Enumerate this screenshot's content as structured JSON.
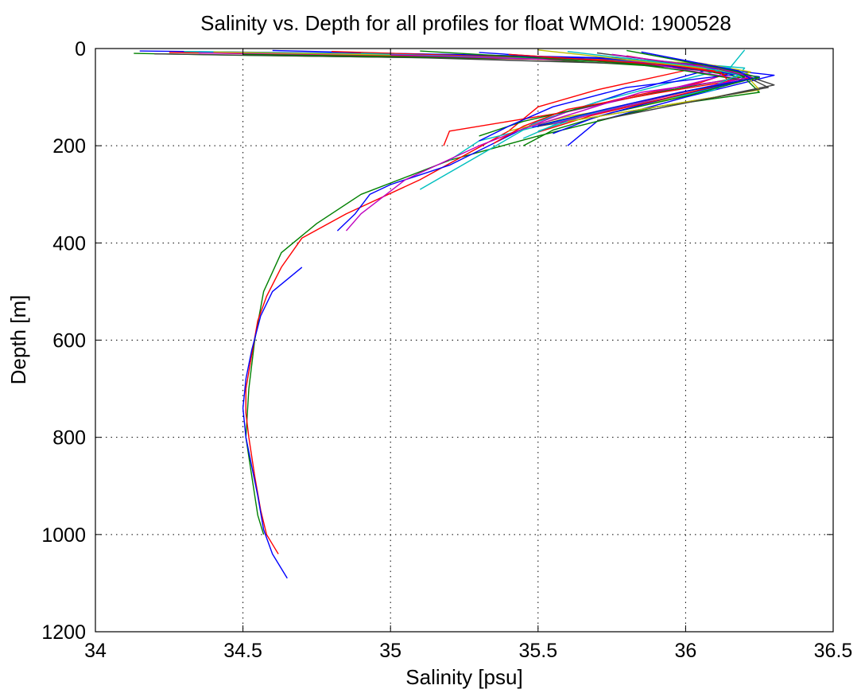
{
  "chart_data": {
    "type": "line",
    "title": "Salinity vs. Depth for all profiles for float WMOId: 1900528",
    "xlabel": "Salinity [psu]",
    "ylabel": "Depth [m]",
    "xlim": [
      34,
      36.5
    ],
    "ylim": [
      0,
      1200
    ],
    "y_reversed": true,
    "grid": true,
    "legend": "none",
    "x_ticks": [
      "34",
      "34.5",
      "35",
      "35.5",
      "36",
      "36.5"
    ],
    "y_ticks": [
      "0",
      "200",
      "400",
      "600",
      "800",
      "1000",
      "1200"
    ],
    "colors": [
      "#0000ff",
      "#008000",
      "#ff0000",
      "#00bfbf",
      "#bf00bf",
      "#bfbf00",
      "#404040"
    ],
    "series": [
      {
        "color": "#0000ff",
        "x": [
          34.15,
          35.2,
          35.8,
          36.0,
          36.3,
          36.0,
          35.7,
          35.6
        ],
        "y": [
          5,
          12,
          20,
          35,
          55,
          100,
          150,
          200
        ]
      },
      {
        "color": "#008000",
        "x": [
          34.13,
          34.5,
          35.5,
          36.0,
          36.2,
          36.25,
          35.9,
          35.5,
          35.2,
          34.9,
          34.75,
          34.63,
          34.57,
          34.54,
          34.52,
          34.51,
          34.53,
          34.55,
          34.57
        ],
        "y": [
          10,
          14,
          22,
          40,
          60,
          90,
          120,
          180,
          230,
          300,
          360,
          420,
          500,
          600,
          700,
          800,
          880,
          960,
          1000
        ]
      },
      {
        "color": "#ff0000",
        "x": [
          34.25,
          35.0,
          35.7,
          36.0,
          36.15,
          36.05,
          35.8,
          35.6,
          35.4,
          35.2,
          35.18
        ],
        "y": [
          8,
          15,
          25,
          38,
          50,
          70,
          100,
          130,
          150,
          170,
          200
        ]
      },
      {
        "color": "#ff0000",
        "x": [
          35.8,
          35.9,
          36.0,
          35.7,
          35.5,
          35.4,
          35.1,
          34.85,
          34.7,
          34.63,
          34.58,
          34.55,
          34.53,
          34.51,
          34.51,
          34.52,
          34.54,
          34.56,
          34.58,
          34.62
        ],
        "y": [
          15,
          25,
          45,
          85,
          120,
          170,
          270,
          340,
          390,
          450,
          510,
          560,
          630,
          700,
          750,
          800,
          880,
          950,
          1000,
          1040
        ]
      },
      {
        "color": "#0000ff",
        "x": [
          34.7,
          34.6,
          34.56,
          34.53,
          34.51,
          34.5,
          34.51,
          34.53,
          34.55,
          34.57,
          34.6,
          34.65
        ],
        "y": [
          450,
          500,
          550,
          620,
          680,
          740,
          800,
          860,
          920,
          990,
          1040,
          1090
        ]
      },
      {
        "color": "#0000ff",
        "x": [
          36.1,
          35.8,
          35.5,
          35.2,
          35.0,
          34.93,
          34.88,
          34.82
        ],
        "y": [
          40,
          90,
          150,
          240,
          280,
          300,
          340,
          375
        ]
      },
      {
        "color": "#00bfbf",
        "x": [
          34.3,
          35.3,
          35.9,
          36.2,
          36.18,
          36.1,
          35.8,
          35.5,
          35.3,
          35.2
        ],
        "y": [
          6,
          14,
          25,
          40,
          55,
          85,
          120,
          160,
          190,
          230
        ]
      },
      {
        "color": "#00bfbf",
        "x": [
          36.2,
          36.15,
          35.95,
          35.7,
          35.5,
          35.3,
          35.1
        ],
        "y": [
          3,
          40,
          70,
          110,
          150,
          220,
          290
        ]
      },
      {
        "color": "#bf00bf",
        "x": [
          34.35,
          35.4,
          35.95,
          36.15,
          36.1,
          35.9,
          35.6,
          35.3,
          35.05,
          34.9,
          34.85
        ],
        "y": [
          9,
          16,
          28,
          42,
          60,
          90,
          130,
          200,
          270,
          340,
          375
        ]
      },
      {
        "color": "#bfbf00",
        "x": [
          34.4,
          35.5,
          36.05,
          36.22,
          36.1,
          35.9,
          35.6,
          35.4
        ],
        "y": [
          7,
          18,
          30,
          48,
          80,
          110,
          140,
          170
        ]
      },
      {
        "color": "#404040",
        "x": [
          34.2,
          35.1,
          35.85,
          36.2,
          36.3,
          36.1,
          35.8,
          35.5
        ],
        "y": [
          11,
          19,
          32,
          55,
          75,
          100,
          130,
          160
        ]
      },
      {
        "color": "#008000",
        "x": [
          34.5,
          35.6,
          36.1,
          36.2,
          35.95,
          35.7,
          35.45,
          35.3
        ],
        "y": [
          12,
          22,
          38,
          58,
          85,
          115,
          150,
          180
        ]
      },
      {
        "color": "#0000ff",
        "x": [
          34.6,
          35.7,
          36.05,
          36.18,
          35.8,
          35.55,
          35.4,
          35.3
        ],
        "y": [
          4,
          20,
          33,
          52,
          80,
          120,
          160,
          190
        ]
      },
      {
        "color": "#ff0000",
        "x": [
          34.8,
          35.75,
          36.1,
          36.22,
          35.9,
          35.6,
          35.45,
          35.35
        ],
        "y": [
          6,
          24,
          36,
          60,
          92,
          125,
          160,
          195
        ]
      },
      {
        "color": "#00bfbf",
        "x": [
          34.9,
          35.8,
          36.15,
          36.2,
          36.0,
          35.7,
          35.5
        ],
        "y": [
          10,
          26,
          40,
          65,
          95,
          130,
          170
        ]
      },
      {
        "color": "#bf00bf",
        "x": [
          35.0,
          35.85,
          36.0,
          36.18,
          35.85,
          35.65,
          35.45
        ],
        "y": [
          13,
          28,
          44,
          62,
          90,
          128,
          165
        ]
      },
      {
        "color": "#008000",
        "x": [
          35.1,
          35.8,
          36.0,
          36.2,
          36.0,
          35.75,
          35.55,
          35.45
        ],
        "y": [
          5,
          30,
          46,
          66,
          98,
          132,
          168,
          200
        ]
      },
      {
        "color": "#0000ff",
        "x": [
          35.3,
          35.9,
          36.1,
          36.25,
          35.95,
          35.7,
          35.55
        ],
        "y": [
          8,
          32,
          48,
          58,
          100,
          140,
          175
        ]
      },
      {
        "color": "#ff0000",
        "x": [
          35.4,
          35.95,
          36.12,
          36.15,
          35.92,
          35.68,
          35.5
        ],
        "y": [
          12,
          34,
          50,
          70,
          104,
          138,
          172
        ]
      },
      {
        "color": "#bfbf00",
        "x": [
          35.5,
          36.0,
          36.2,
          36.25,
          35.95,
          35.6
        ],
        "y": [
          3,
          36,
          52,
          85,
          115,
          150
        ]
      },
      {
        "color": "#00bfbf",
        "x": [
          35.6,
          36.05,
          36.18,
          36.1,
          35.85,
          35.6,
          35.45
        ],
        "y": [
          6,
          38,
          54,
          75,
          108,
          145,
          185
        ]
      },
      {
        "color": "#404040",
        "x": [
          35.7,
          36.1,
          36.2,
          36.28,
          36.0,
          35.7
        ],
        "y": [
          9,
          40,
          56,
          80,
          112,
          148
        ]
      },
      {
        "color": "#bf00bf",
        "x": [
          35.75,
          36.12,
          36.22,
          36.05,
          35.8,
          35.55
        ],
        "y": [
          12,
          42,
          58,
          82,
          118,
          155
        ]
      },
      {
        "color": "#008000",
        "x": [
          35.8,
          36.15,
          36.25,
          36.0,
          35.75,
          35.5
        ],
        "y": [
          4,
          44,
          60,
          88,
          122,
          158
        ]
      },
      {
        "color": "#0000ff",
        "x": [
          35.85,
          36.18,
          36.22,
          35.98,
          35.72,
          35.48
        ],
        "y": [
          7,
          46,
          62,
          90,
          126,
          162
        ]
      }
    ]
  }
}
